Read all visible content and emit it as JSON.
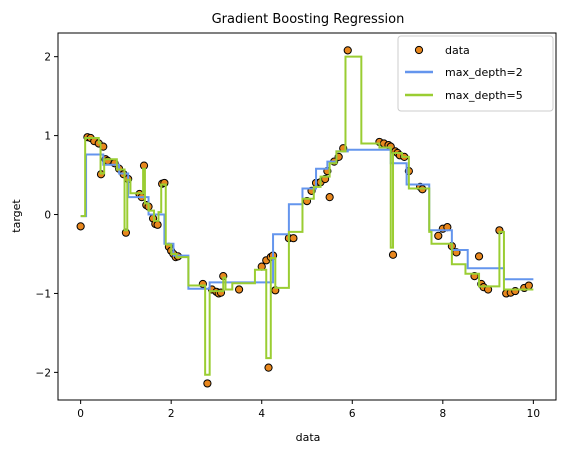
{
  "chart_data": {
    "type": "line",
    "title": "Gradient Boosting Regression",
    "xlabel": "data",
    "ylabel": "target",
    "xlim": [
      -0.5,
      10.5
    ],
    "ylim": [
      -2.35,
      2.3
    ],
    "xticks": [
      0,
      2,
      4,
      6,
      8,
      10
    ],
    "yticks": [
      -2,
      -1,
      0,
      1,
      2
    ],
    "grid": false,
    "legend_position": "top-right",
    "legend": [
      "data",
      "max_depth=2",
      "max_depth=5"
    ],
    "colors": {
      "data_fill": "#e8871e",
      "data_edge": "#000000",
      "max_depth_2": "#6495ed",
      "max_depth_5": "#9acd32"
    },
    "scatter": {
      "name": "data",
      "x": [
        0.0,
        0.15,
        0.22,
        0.3,
        0.4,
        0.45,
        0.5,
        0.55,
        0.6,
        0.75,
        0.85,
        0.95,
        1.0,
        1.05,
        1.3,
        1.35,
        1.4,
        1.45,
        1.5,
        1.6,
        1.65,
        1.7,
        1.8,
        1.85,
        1.95,
        2.0,
        2.05,
        2.1,
        2.15,
        2.7,
        2.8,
        2.9,
        3.0,
        3.05,
        3.1,
        3.15,
        3.5,
        4.0,
        4.1,
        4.15,
        4.2,
        4.25,
        4.3,
        4.6,
        4.7,
        5.0,
        5.1,
        5.2,
        5.3,
        5.4,
        5.45,
        5.5,
        5.6,
        5.7,
        5.8,
        5.9,
        6.6,
        6.7,
        6.8,
        6.85,
        6.9,
        6.95,
        7.0,
        7.05,
        7.15,
        7.25,
        7.5,
        7.55,
        7.9,
        8.0,
        8.1,
        8.2,
        8.3,
        8.7,
        8.8,
        8.85,
        8.9,
        9.0,
        9.25,
        9.4,
        9.5,
        9.6,
        9.8,
        9.9
      ],
      "y": [
        -0.15,
        0.98,
        0.97,
        0.93,
        0.9,
        0.51,
        0.86,
        0.7,
        0.68,
        0.65,
        0.58,
        0.51,
        -0.23,
        0.45,
        0.26,
        0.22,
        0.62,
        0.12,
        0.1,
        -0.05,
        -0.12,
        -0.13,
        0.39,
        0.4,
        -0.41,
        -0.46,
        -0.5,
        -0.54,
        -0.53,
        -0.88,
        -2.14,
        -0.95,
        -0.98,
        -1.0,
        -0.99,
        -0.78,
        -0.95,
        -0.66,
        -0.58,
        -1.94,
        -0.54,
        -0.52,
        -0.96,
        -0.3,
        -0.3,
        0.17,
        0.3,
        0.4,
        0.41,
        0.45,
        0.55,
        0.22,
        0.67,
        0.73,
        0.84,
        2.08,
        0.92,
        0.9,
        0.88,
        0.86,
        -0.51,
        0.8,
        0.78,
        0.75,
        0.73,
        0.55,
        0.35,
        0.32,
        -0.27,
        -0.18,
        -0.16,
        -0.4,
        -0.48,
        -0.78,
        -0.53,
        -0.88,
        -0.92,
        -0.95,
        -0.2,
        -1.0,
        -0.99,
        -0.97,
        -0.93,
        -0.9
      ]
    },
    "series": [
      {
        "name": "max_depth=2",
        "x": [
          0.0,
          0.12,
          0.12,
          0.5,
          0.5,
          0.85,
          0.85,
          1.05,
          1.05,
          1.5,
          1.5,
          1.85,
          1.85,
          2.05,
          2.05,
          2.38,
          2.38,
          2.85,
          2.85,
          4.25,
          4.25,
          4.6,
          4.6,
          4.9,
          4.9,
          5.2,
          5.2,
          5.45,
          5.45,
          5.65,
          5.65,
          5.9,
          5.9,
          6.85,
          6.85,
          7.2,
          7.2,
          7.7,
          7.7,
          8.2,
          8.2,
          8.55,
          8.55,
          9.35,
          9.35,
          10.0
        ],
        "y": [
          -0.02,
          -0.02,
          0.76,
          0.76,
          0.63,
          0.63,
          0.52,
          0.52,
          0.22,
          0.22,
          0.0,
          0.0,
          -0.37,
          -0.37,
          -0.52,
          -0.52,
          -0.94,
          -0.94,
          -0.86,
          -0.86,
          -0.25,
          -0.25,
          0.13,
          0.13,
          0.33,
          0.33,
          0.58,
          0.58,
          0.67,
          0.67,
          0.8,
          0.8,
          0.82,
          0.82,
          0.65,
          0.65,
          0.38,
          0.38,
          -0.2,
          -0.2,
          -0.45,
          -0.45,
          -0.68,
          -0.68,
          -0.82,
          -0.82
        ]
      },
      {
        "name": "max_depth=5",
        "x": [
          0.0,
          0.1,
          0.1,
          0.4,
          0.4,
          0.44,
          0.44,
          0.52,
          0.52,
          0.8,
          0.8,
          0.97,
          0.97,
          1.03,
          1.03,
          1.1,
          1.1,
          1.38,
          1.38,
          1.42,
          1.42,
          1.5,
          1.5,
          1.62,
          1.62,
          1.72,
          1.72,
          1.78,
          1.78,
          1.88,
          1.88,
          2.0,
          2.0,
          2.12,
          2.12,
          2.38,
          2.38,
          2.75,
          2.75,
          2.85,
          2.85,
          3.15,
          3.15,
          3.2,
          3.2,
          3.35,
          3.35,
          3.85,
          3.85,
          4.1,
          4.1,
          4.2,
          4.2,
          4.3,
          4.3,
          4.6,
          4.6,
          4.9,
          4.9,
          5.15,
          5.15,
          5.3,
          5.3,
          5.5,
          5.5,
          5.65,
          5.65,
          5.85,
          5.85,
          6.2,
          6.2,
          6.6,
          6.6,
          6.85,
          6.85,
          6.9,
          6.9,
          7.1,
          7.1,
          7.25,
          7.25,
          7.7,
          7.7,
          7.75,
          7.75,
          8.2,
          8.2,
          8.5,
          8.5,
          8.8,
          8.8,
          9.25,
          9.25,
          9.35,
          9.35,
          10.0
        ],
        "y": [
          -0.02,
          -0.02,
          0.97,
          0.97,
          0.91,
          0.91,
          0.52,
          0.52,
          0.7,
          0.7,
          0.57,
          0.57,
          -0.2,
          -0.2,
          0.44,
          0.44,
          0.27,
          0.27,
          0.58,
          0.58,
          0.14,
          0.14,
          0.05,
          0.05,
          -0.08,
          -0.08,
          0.03,
          0.03,
          0.38,
          0.38,
          -0.38,
          -0.38,
          -0.5,
          -0.5,
          -0.54,
          -0.54,
          -0.9,
          -0.9,
          -2.03,
          -2.03,
          -0.97,
          -0.97,
          -0.8,
          -0.8,
          -0.95,
          -0.95,
          -0.87,
          -0.87,
          -0.7,
          -0.7,
          -1.82,
          -1.82,
          -0.55,
          -0.55,
          -0.93,
          -0.93,
          -0.22,
          -0.22,
          0.2,
          0.2,
          0.35,
          0.35,
          0.48,
          0.48,
          0.65,
          0.65,
          0.8,
          0.8,
          2.0,
          2.0,
          0.9,
          0.9,
          0.85,
          0.85,
          -0.42,
          -0.42,
          0.78,
          0.78,
          0.73,
          0.73,
          0.33,
          0.33,
          -0.22,
          -0.22,
          -0.37,
          -0.37,
          -0.63,
          -0.63,
          -0.75,
          -0.75,
          -0.91,
          -0.91,
          -0.22,
          -0.22,
          -0.95,
          -0.95
        ]
      }
    ]
  }
}
